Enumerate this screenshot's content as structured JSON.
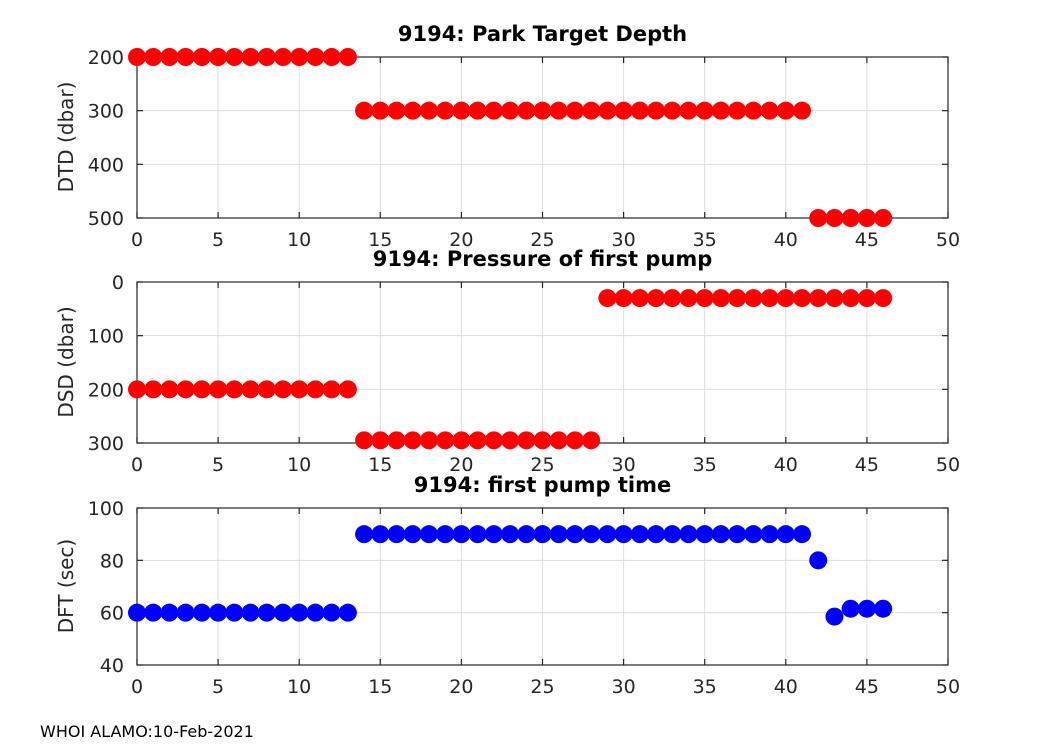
{
  "figure": {
    "footer_text": "WHOI ALAMO:10-Feb-2021",
    "background_color": "#ffffff",
    "grid_color": "#dedede",
    "axis_color": "#262626"
  },
  "chart_data": [
    {
      "type": "scatter",
      "title": "9194: Park Target Depth",
      "xlabel": "",
      "ylabel": "DTD (dbar)",
      "xlim": [
        0,
        50
      ],
      "ylim": [
        200,
        500
      ],
      "y_reversed": true,
      "xticks": [
        0,
        5,
        10,
        15,
        20,
        25,
        30,
        35,
        40,
        45,
        50
      ],
      "yticks": [
        200,
        300,
        400,
        500
      ],
      "grid": true,
      "legend": "none",
      "marker": {
        "shape": "circle",
        "color": "#ff0000",
        "radius": 9
      },
      "series": [
        {
          "name": "park-target-depth",
          "x": [
            0,
            1,
            2,
            3,
            4,
            5,
            6,
            7,
            8,
            9,
            10,
            11,
            12,
            13,
            14,
            15,
            16,
            17,
            18,
            19,
            20,
            21,
            22,
            23,
            24,
            25,
            26,
            27,
            28,
            29,
            30,
            31,
            32,
            33,
            34,
            35,
            36,
            37,
            38,
            39,
            40,
            41,
            42,
            43,
            44,
            45,
            46
          ],
          "y": [
            200,
            200,
            200,
            200,
            200,
            200,
            200,
            200,
            200,
            200,
            200,
            200,
            200,
            200,
            300,
            300,
            300,
            300,
            300,
            300,
            300,
            300,
            300,
            300,
            300,
            300,
            300,
            300,
            300,
            300,
            300,
            300,
            300,
            300,
            300,
            300,
            300,
            300,
            300,
            300,
            300,
            300,
            500,
            500,
            500,
            500,
            500
          ]
        }
      ]
    },
    {
      "type": "scatter",
      "title": "9194: Pressure of first pump",
      "xlabel": "",
      "ylabel": "DSD (dbar)",
      "xlim": [
        0,
        50
      ],
      "ylim": [
        0,
        300
      ],
      "y_reversed": true,
      "xticks": [
        0,
        5,
        10,
        15,
        20,
        25,
        30,
        35,
        40,
        45,
        50
      ],
      "yticks": [
        0,
        100,
        200,
        300
      ],
      "grid": true,
      "legend": "none",
      "marker": {
        "shape": "circle",
        "color": "#ff0000",
        "radius": 9
      },
      "series": [
        {
          "name": "pressure-of-first-pump",
          "x": [
            0,
            1,
            2,
            3,
            4,
            5,
            6,
            7,
            8,
            9,
            10,
            11,
            12,
            13,
            14,
            15,
            16,
            17,
            18,
            19,
            20,
            21,
            22,
            23,
            24,
            25,
            26,
            27,
            28,
            29,
            30,
            31,
            32,
            33,
            34,
            35,
            36,
            37,
            38,
            39,
            40,
            41,
            42,
            43,
            44,
            45,
            46
          ],
          "y": [
            200,
            200,
            200,
            200,
            200,
            200,
            200,
            200,
            200,
            200,
            200,
            200,
            200,
            200,
            295,
            295,
            295,
            295,
            295,
            295,
            295,
            295,
            295,
            295,
            295,
            295,
            295,
            295,
            295,
            30,
            30,
            30,
            30,
            30,
            30,
            30,
            30,
            30,
            30,
            30,
            30,
            30,
            30,
            30,
            30,
            30,
            30
          ]
        }
      ]
    },
    {
      "type": "scatter",
      "title": "9194: first pump time",
      "xlabel": "",
      "ylabel": "DFT (sec)",
      "xlim": [
        0,
        50
      ],
      "ylim": [
        40,
        100
      ],
      "y_reversed": false,
      "xticks": [
        0,
        5,
        10,
        15,
        20,
        25,
        30,
        35,
        40,
        45,
        50
      ],
      "yticks": [
        40,
        60,
        80,
        100
      ],
      "grid": true,
      "legend": "none",
      "marker": {
        "shape": "circle",
        "color": "#0000ff",
        "radius": 9
      },
      "series": [
        {
          "name": "first-pump-time",
          "x": [
            0,
            1,
            2,
            3,
            4,
            5,
            6,
            7,
            8,
            9,
            10,
            11,
            12,
            13,
            14,
            15,
            16,
            17,
            18,
            19,
            20,
            21,
            22,
            23,
            24,
            25,
            26,
            27,
            28,
            29,
            30,
            31,
            32,
            33,
            34,
            35,
            36,
            37,
            38,
            39,
            40,
            41,
            42,
            43,
            44,
            45,
            46
          ],
          "y": [
            60,
            60,
            60,
            60,
            60,
            60,
            60,
            60,
            60,
            60,
            60,
            60,
            60,
            60,
            90,
            90,
            90,
            90,
            90,
            90,
            90,
            90,
            90,
            90,
            90,
            90,
            90,
            90,
            90,
            90,
            90,
            90,
            90,
            90,
            90,
            90,
            90,
            90,
            90,
            90,
            90,
            90,
            80,
            58.5,
            61.5,
            61.5,
            61.5
          ]
        }
      ]
    }
  ]
}
